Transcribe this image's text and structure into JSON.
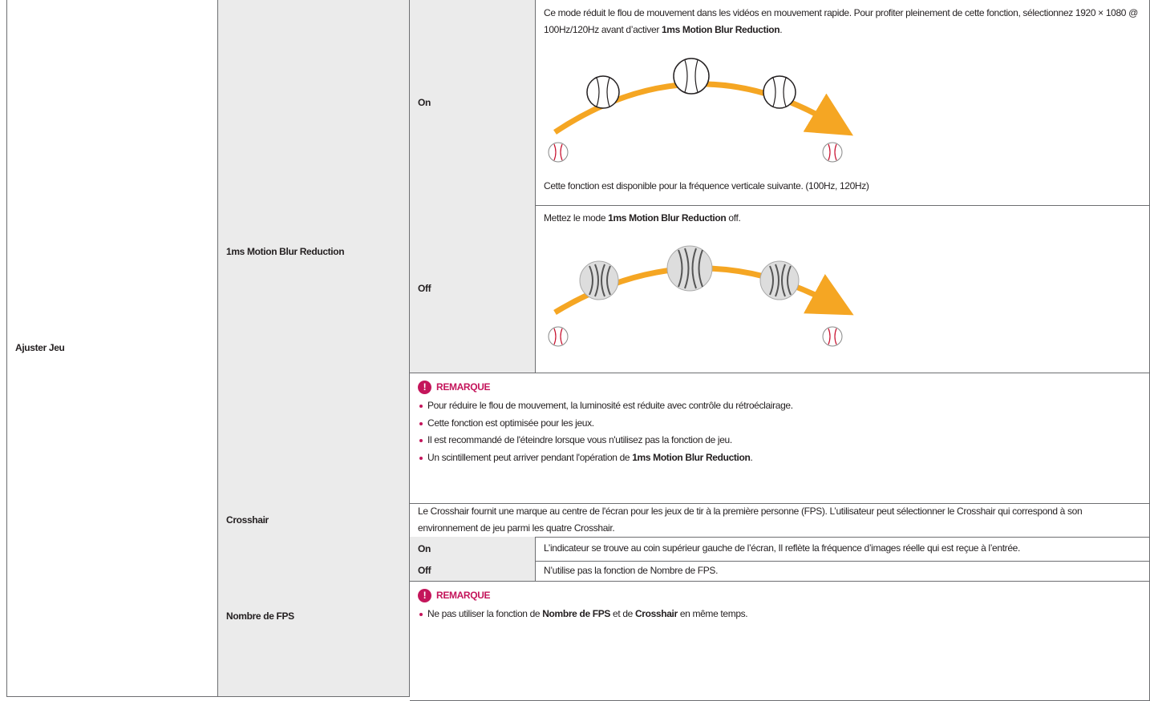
{
  "menu": "Ajuster Jeu",
  "motion_blur": {
    "name": "1ms Motion Blur Reduction",
    "on": {
      "label": "On",
      "description": [
        "Ce mode réduit le flou de mouvement dans les vidéos en mouvement rapide. Pour profiter pleinement de cette fonction, sélectionnez 1920 × 1080 @ 100Hz/120Hz avant d’activer ",
        "1ms Motion Blur Reduction",
        "."
      ],
      "note": "Cette fonction est disponible pour la fréquence verticale suivante. (100Hz, 120Hz)"
    },
    "off": {
      "label": "Off",
      "description": [
        "Mettez le mode ",
        "1ms Motion Blur Reduction",
        " off."
      ]
    },
    "remarque": {
      "title": "REMARQUE",
      "items": [
        [
          "Pour réduire le flou de mouvement, la luminosité est réduite avec contrôle du rétroéclairage."
        ],
        [
          "Cette fonction est optimisée pour les jeux."
        ],
        [
          "Il est recommandé de l'éteindre lorsque vous n'utilisez pas la fonction de jeu."
        ],
        [
          "Un scintillement peut arriver pendant l'opération de ",
          "1ms Motion Blur Reduction",
          "."
        ]
      ]
    }
  },
  "crosshair": {
    "name": "Crosshair",
    "description": "Le Crosshair fournit une marque au centre de l'écran pour les jeux de tir à la première personne (FPS). L’utilisateur peut sélectionner le Crosshair qui correspond à son environnement de jeu parmi les quatre Crosshair."
  },
  "fps": {
    "name": "Nombre de FPS",
    "on": {
      "label": "On",
      "description": "L’indicateur se trouve au coin supérieur gauche de l’écran, Il reflète la fréquence d’images réelle qui est reçue à l’entrée."
    },
    "off": {
      "label": "Off",
      "description": "N’utilise pas la fonction de Nombre de FPS."
    },
    "remarque": {
      "title": "REMARQUE",
      "items": [
        [
          "Ne pas utiliser la fonction de ",
          "Nombre de FPS",
          " et de ",
          "Crosshair",
          " en même temps."
        ]
      ]
    }
  }
}
